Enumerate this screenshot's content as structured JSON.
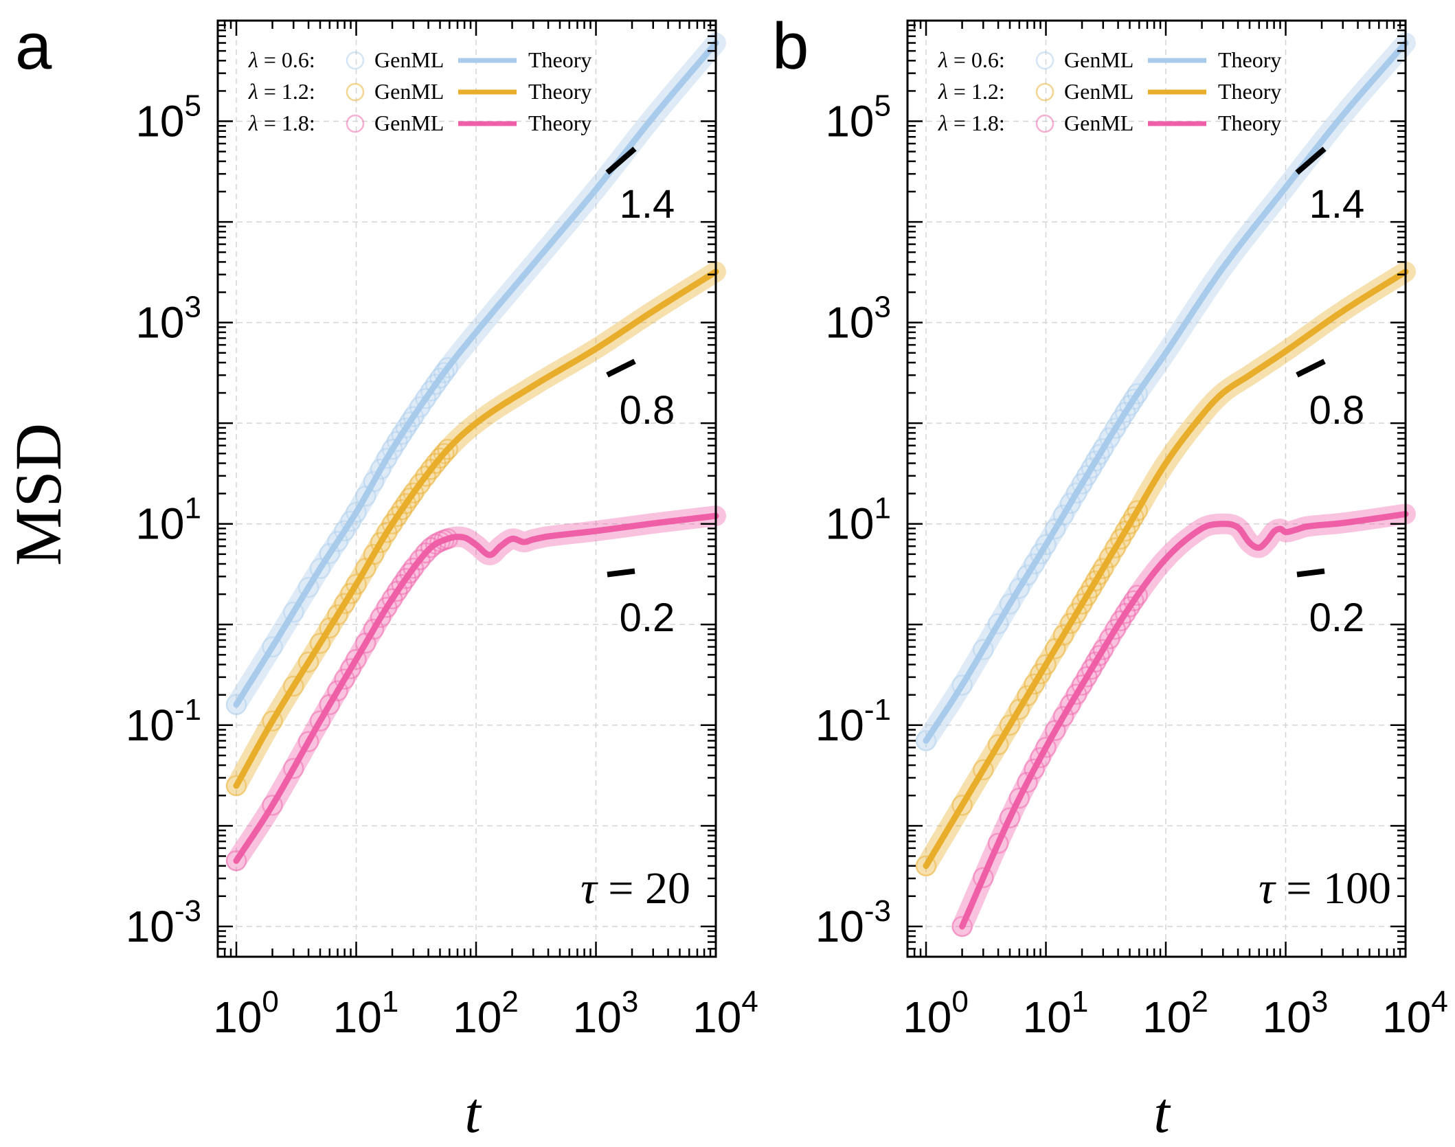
{
  "figure": {
    "ylabel": "MSD",
    "xlabel": "t",
    "x_tick_labels": [
      {
        "base": "10",
        "exp": "0"
      },
      {
        "base": "10",
        "exp": "1"
      },
      {
        "base": "10",
        "exp": "2"
      },
      {
        "base": "10",
        "exp": "3"
      },
      {
        "base": "10",
        "exp": "4"
      }
    ],
    "y_tick_labels": [
      {
        "base": "10",
        "exp": "5"
      },
      {
        "base": "10",
        "exp": "3"
      },
      {
        "base": "10",
        "exp": "1"
      },
      {
        "base": "10",
        "exp": "-1"
      },
      {
        "base": "10",
        "exp": "-3"
      }
    ],
    "legend": [
      {
        "prefix": "λ",
        "rest": " = 0.6:",
        "data_label": "GenML",
        "theory_label": "Theory"
      },
      {
        "prefix": "λ",
        "rest": " = 1.2:",
        "data_label": "GenML",
        "theory_label": "Theory"
      },
      {
        "prefix": "λ",
        "rest": " = 1.8:",
        "data_label": "GenML",
        "theory_label": "Theory"
      }
    ],
    "slope_labels": [
      "1.4",
      "0.8",
      "0.2"
    ],
    "colors": {
      "lambda_0_6": "#a9cbeb",
      "lambda_1_2": "#e8ad2a",
      "lambda_1_8": "#ee5fa8",
      "grid": "#d4d4d4",
      "axis": "#000000"
    }
  },
  "chart_data": [
    {
      "type": "line",
      "panel_label": "a",
      "annotation": {
        "symbol": "τ",
        "value": " = 20"
      },
      "xscale": "log",
      "yscale": "log",
      "xlim": [
        0.7,
        10000
      ],
      "ylim": [
        0.0005,
        1000000
      ],
      "xlabel": "t",
      "ylabel": "MSD",
      "grid": true,
      "legend_position": "top-left",
      "series": [
        {
          "name": "λ = 0.6",
          "x": [
            1,
            2,
            5,
            10,
            20,
            50,
            100,
            300,
            1000,
            3000,
            10000
          ],
          "y": [
            0.16,
            0.6,
            3.6,
            13,
            55,
            280,
            800,
            3800,
            21000,
            110000,
            600000
          ]
        },
        {
          "name": "λ = 1.2",
          "x": [
            1,
            2,
            5,
            10,
            20,
            50,
            100,
            300,
            1000,
            3000,
            10000
          ],
          "y": [
            0.025,
            0.11,
            0.65,
            2.5,
            10,
            45,
            100,
            235,
            550,
            1300,
            3200
          ]
        },
        {
          "name": "λ = 1.8",
          "x": [
            1,
            2,
            5,
            10,
            20,
            40,
            60,
            80,
            100,
            130,
            160,
            200,
            250,
            300,
            400,
            1000,
            3000,
            10000
          ],
          "y": [
            0.0045,
            0.016,
            0.11,
            0.45,
            1.8,
            5.5,
            7.2,
            7.3,
            6.2,
            4.9,
            6.0,
            7.1,
            6.6,
            7.0,
            7.5,
            8.5,
            10.1,
            12.0
          ]
        }
      ],
      "slope_markers": [
        {
          "label": "1.4",
          "slope": 1.4
        },
        {
          "label": "0.8",
          "slope": 0.8
        },
        {
          "label": "0.2",
          "slope": 0.2
        }
      ]
    },
    {
      "type": "line",
      "panel_label": "b",
      "annotation": {
        "symbol": "τ",
        "value": " = 100"
      },
      "xscale": "log",
      "yscale": "log",
      "xlim": [
        0.7,
        10000
      ],
      "ylim": [
        0.0005,
        1000000
      ],
      "xlabel": "t",
      "ylabel": "MSD",
      "grid": true,
      "legend_position": "top-left",
      "series": [
        {
          "name": "λ = 0.6",
          "x": [
            1,
            2,
            5,
            10,
            20,
            50,
            100,
            300,
            1000,
            3000,
            10000
          ],
          "y": [
            0.07,
            0.25,
            1.6,
            6.2,
            25,
            150,
            500,
            3500,
            22000,
            115000,
            600000
          ]
        },
        {
          "name": "λ = 1.2",
          "x": [
            1,
            2,
            5,
            10,
            20,
            50,
            100,
            200,
            300,
            500,
            1000,
            3000,
            10000
          ],
          "y": [
            0.004,
            0.016,
            0.1,
            0.4,
            1.6,
            10,
            40,
            120,
            200,
            300,
            520,
            1300,
            3200
          ]
        },
        {
          "name": "λ = 1.8",
          "x": [
            2,
            5,
            10,
            20,
            50,
            100,
            200,
            300,
            400,
            500,
            600,
            700,
            800,
            900,
            1000,
            1200,
            1500,
            3000,
            10000
          ],
          "y": [
            0.001,
            0.012,
            0.06,
            0.25,
            1.5,
            4.5,
            9.0,
            10.0,
            9.2,
            6.5,
            5.8,
            6.8,
            8.4,
            8.9,
            8.3,
            8.7,
            9.4,
            10.2,
            12.5
          ]
        }
      ],
      "slope_markers": [
        {
          "label": "1.4",
          "slope": 1.4
        },
        {
          "label": "0.8",
          "slope": 0.8
        },
        {
          "label": "0.2",
          "slope": 0.2
        }
      ]
    }
  ]
}
